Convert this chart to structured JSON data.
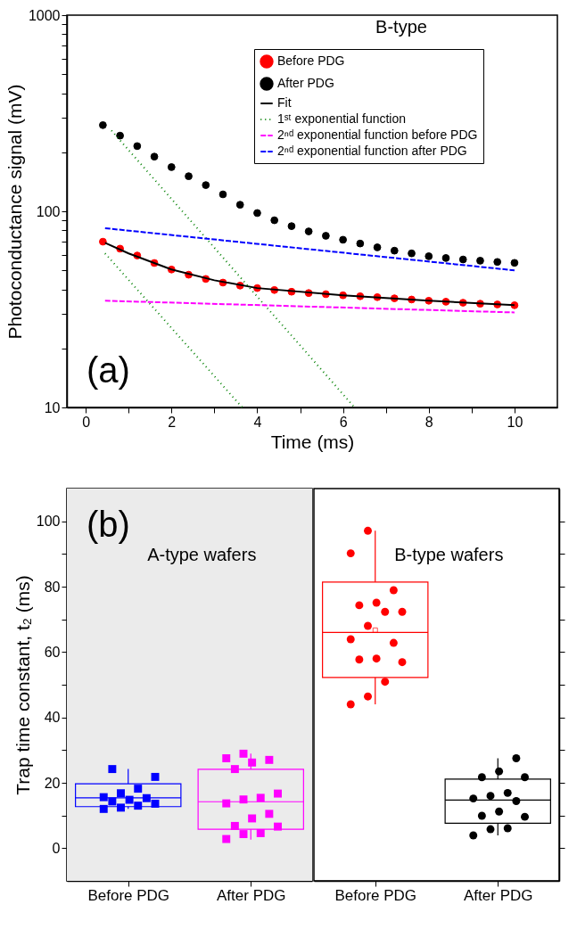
{
  "chart_data": [
    {
      "type": "scatter",
      "xlabel": "Time (ms)",
      "ylabel": "Photoconductance signal (mV)",
      "log": "y",
      "legend": "top right",
      "xlim": [
        -0.44,
        11.0
      ],
      "xticks": [
        0,
        {
          "value": 1,
          "label": null
        },
        2,
        {
          "value": 3,
          "label": null
        },
        4,
        {
          "value": 5,
          "label": null
        },
        6,
        {
          "value": 7,
          "label": null
        },
        8,
        {
          "value": 9,
          "label": null
        },
        10
      ],
      "ylim": [
        10,
        1000
      ],
      "yticks": [
        10,
        {
          "value": 20,
          "label": null
        },
        {
          "value": 30,
          "label": null
        },
        {
          "value": 40,
          "label": null
        },
        {
          "value": 50,
          "label": null
        },
        {
          "value": 60,
          "label": null
        },
        {
          "value": 70,
          "label": null
        },
        {
          "value": 80,
          "label": null
        },
        {
          "value": 90,
          "label": null
        },
        100,
        {
          "value": 200,
          "label": null
        },
        {
          "value": 300,
          "label": null
        },
        {
          "value": 400,
          "label": null
        },
        {
          "value": 500,
          "label": null
        },
        {
          "value": 600,
          "label": null
        },
        {
          "value": 700,
          "label": null
        },
        {
          "value": 800,
          "label": null
        },
        {
          "value": 900,
          "label": null
        },
        1000
      ],
      "annotations": [
        "B-type",
        "(a)"
      ],
      "x": [
        0.4,
        0.8,
        1.2,
        1.6,
        2.0,
        2.4,
        2.8,
        3.2,
        3.6,
        4.0,
        4.4,
        4.8,
        5.2,
        5.6,
        6.0,
        6.4,
        6.8,
        7.2,
        7.6,
        8.0,
        8.4,
        8.8,
        9.2,
        9.6,
        10.0
      ],
      "series": [
        {
          "name": "Before PDG",
          "type": "scatter",
          "marker": "circle",
          "color": "#ff0000",
          "values": [
            70,
            64.5,
            59.5,
            54.5,
            50.5,
            47.5,
            45.2,
            43.3,
            41.8,
            40.6,
            39.7,
            38.9,
            38.3,
            37.8,
            37.3,
            36.9,
            36.5,
            36.0,
            35.5,
            35.0,
            34.6,
            34.2,
            33.8,
            33.5,
            33.2
          ]
        },
        {
          "name": "After PDG",
          "type": "scatter",
          "marker": "circle",
          "color": "#000000",
          "values": [
            275,
            243,
            215,
            190,
            168,
            151,
            136,
            122,
            108,
            98,
            90,
            84,
            79,
            75,
            71.6,
            68.5,
            65.5,
            63,
            61,
            59,
            57.8,
            56.8,
            56,
            55.2,
            54.6
          ]
        },
        {
          "name": "Fit",
          "type": "line",
          "line_style": "solid",
          "color": "#000000",
          "x": [
            0.45,
            1,
            2,
            3,
            4,
            6,
            8,
            10
          ],
          "values": [
            69,
            61,
            50.5,
            44.5,
            40.6,
            37.3,
            35,
            33.2
          ]
        },
        {
          "name": "1ˢᵗ exponential function",
          "type": "line",
          "line_style": "dotted",
          "color": "#008000",
          "x": [
            0.45,
            3.65
          ],
          "values": [
            61,
            10
          ]
        },
        {
          "type": "line",
          "line_style": "dotted",
          "color": "#008000",
          "x": [
            0.6,
            6.27
          ],
          "values": [
            258,
            10
          ]
        },
        {
          "name": "2ⁿᵈ exponential function before PDG",
          "type": "line",
          "line_style": "dashed",
          "color": "#ff00ff",
          "x": [
            0.45,
            10
          ],
          "values": [
            35,
            30.5
          ]
        },
        {
          "name": "2ⁿᵈ exponential function after PDG",
          "type": "line",
          "line_style": "dashed",
          "color": "#0000ff",
          "x": [
            0.45,
            10
          ],
          "values": [
            82,
            50
          ]
        }
      ]
    },
    {
      "type": "box",
      "ylabel": "Trap time constant, t₂ (ms)",
      "categories": [
        "Before PDG",
        "After PDG"
      ],
      "ylim": [
        -10,
        110
      ],
      "yticks": [
        0,
        {
          "value": 10,
          "label": null
        },
        20,
        {
          "value": 30,
          "label": null
        },
        40,
        {
          "value": 50,
          "label": null
        },
        60,
        {
          "value": 70,
          "label": null
        },
        80,
        {
          "value": 90,
          "label": null
        },
        100
      ],
      "bands": [
        {
          "axis": "x",
          "from": "Before PDG",
          "to": "After PDG",
          "color": "#ebebeb"
        }
      ],
      "annotations": [
        "(b)",
        "A-type wafers"
      ],
      "colors": [
        "#0000ff",
        "#ff00ff"
      ],
      "boxes": [
        {
          "low": 12.0,
          "q1": 12.7,
          "median": 15.4,
          "q3": 19.7,
          "high": 24.2
        },
        {
          "low": 2.6,
          "q1": 5.8,
          "median": 14.2,
          "q3": 24.1,
          "high": 28.9
        }
      ],
      "series": [
        {
          "type": "scatter",
          "marker": "square",
          "color": "#0000ff",
          "x": [
            "Before PDG",
            "Before PDG",
            "Before PDG",
            "Before PDG",
            "Before PDG",
            "Before PDG",
            "Before PDG",
            "Before PDG",
            "Before PDG",
            "Before PDG",
            "Before PDG",
            "Before PDG"
          ],
          "values": [
            24.2,
            21.8,
            18.2,
            16.8,
            15.6,
            15.3,
            14.8,
            14.3,
            13.6,
            13.0,
            12.4,
            12.0
          ]
        },
        {
          "type": "scatter",
          "marker": "square",
          "color": "#ff00ff",
          "x": [
            "After PDG",
            "After PDG",
            "After PDG",
            "After PDG",
            "After PDG",
            "After PDG",
            "After PDG",
            "After PDG",
            "After PDG",
            "After PDG",
            "After PDG",
            "After PDG",
            "After PDG",
            "After PDG",
            "After PDG",
            "After PDG"
          ],
          "values": [
            28.9,
            27.5,
            27.0,
            26.2,
            24.2,
            16.7,
            15.4,
            14.9,
            13.7,
            10.5,
            9.1,
            6.8,
            6.6,
            4.6,
            4.3,
            2.8
          ]
        }
      ]
    },
    {
      "type": "box",
      "tick_labels": "x",
      "categories": [
        "Before PDG",
        "After PDG"
      ],
      "ylim": [
        -10,
        110
      ],
      "yticks": [
        {
          "value": 0,
          "label": null
        },
        {
          "value": 10,
          "label": null
        },
        {
          "value": 20,
          "label": null
        },
        {
          "value": 30,
          "label": null
        },
        {
          "value": 40,
          "label": null
        },
        {
          "value": 50,
          "label": null
        },
        {
          "value": 60,
          "label": null
        },
        {
          "value": 70,
          "label": null
        },
        {
          "value": 80,
          "label": null
        },
        {
          "value": 90,
          "label": null
        },
        {
          "value": 100,
          "label": null
        }
      ],
      "annotations": [
        "B-type wafers"
      ],
      "colors": [
        "#ff0000",
        "#000000"
      ],
      "boxes": [
        {
          "low": 44.0,
          "q1": 52.2,
          "median": 66.0,
          "q3": 81.4,
          "high": 97.1,
          "mean": 66.7
        },
        {
          "low": 3.9,
          "q1": 7.6,
          "median": 14.7,
          "q3": 21.1,
          "high": 27.5
        }
      ],
      "series": [
        {
          "type": "scatter",
          "marker": "circle",
          "color": "#ff0000",
          "x": [
            "Before PDG",
            "Before PDG",
            "Before PDG",
            "Before PDG",
            "Before PDG",
            "Before PDG",
            "Before PDG",
            "Before PDG",
            "Before PDG",
            "Before PDG",
            "Before PDG",
            "Before PDG",
            "Before PDG",
            "Before PDG",
            "Before PDG",
            "Before PDG"
          ],
          "values": [
            97.1,
            90.2,
            78.9,
            75.1,
            74.3,
            72.3,
            72.3,
            68.0,
            63.9,
            62.8,
            58.0,
            57.7,
            56.9,
            50.9,
            46.4,
            44.0
          ]
        },
        {
          "type": "scatter",
          "marker": "circle",
          "color": "#000000",
          "x": [
            "After PDG",
            "After PDG",
            "After PDG",
            "After PDG",
            "After PDG",
            "After PDG",
            "After PDG",
            "After PDG",
            "After PDG",
            "After PDG",
            "After PDG",
            "After PDG",
            "After PDG",
            "After PDG"
          ],
          "values": [
            27.5,
            23.5,
            21.7,
            21.7,
            16.9,
            16.0,
            15.2,
            14.4,
            11.2,
            9.9,
            9.6,
            6.1,
            5.8,
            3.9
          ]
        }
      ]
    }
  ]
}
